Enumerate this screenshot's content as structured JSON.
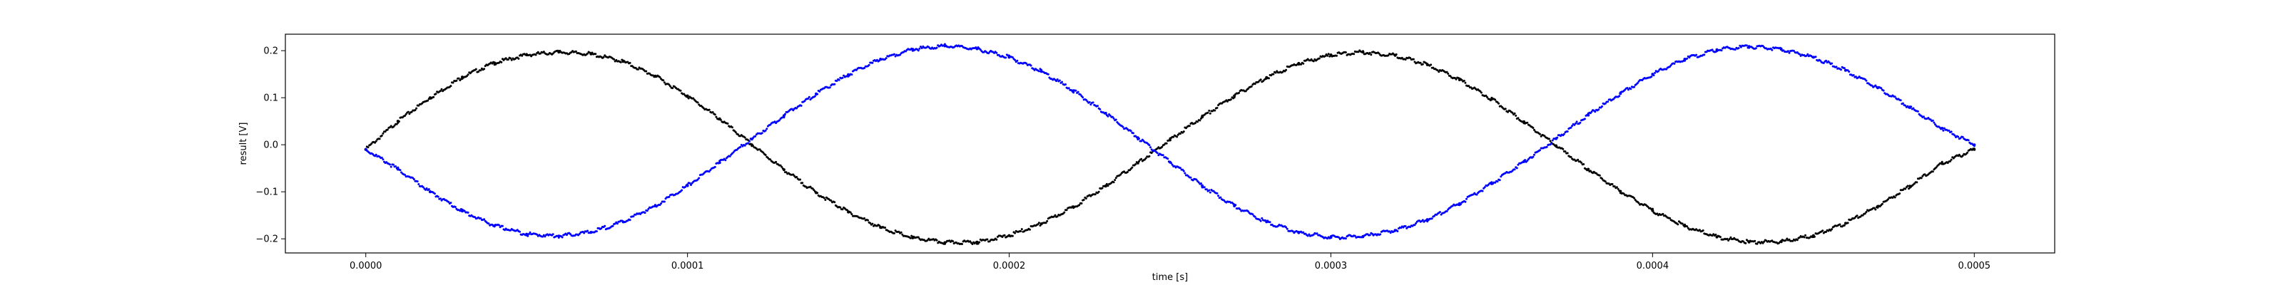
{
  "chart_data": {
    "type": "scatter",
    "title": "",
    "xlabel": "time [s]",
    "ylabel": "result [V]",
    "xlim": [
      -2.5e-05,
      0.000525
    ],
    "ylim": [
      -0.23,
      0.235
    ],
    "x_ticks": [
      0.0,
      0.0001,
      0.0002,
      0.0003,
      0.0004,
      0.0005
    ],
    "x_tick_labels": [
      "0.0000",
      "0.0001",
      "0.0002",
      "0.0003",
      "0.0004",
      "0.0005"
    ],
    "y_ticks": [
      -0.2,
      -0.1,
      0.0,
      0.1,
      0.2
    ],
    "y_tick_labels": [
      "−0.2",
      "−0.1",
      "0.0",
      "0.1",
      "0.2"
    ],
    "grid": false,
    "legend": "none",
    "series": [
      {
        "color": "#000000",
        "marker": "dot",
        "x": [
          0.0,
          1e-05,
          2e-05,
          3e-05,
          4e-05,
          5e-05,
          6e-05,
          7e-05,
          8e-05,
          9e-05,
          0.0001,
          0.00011,
          0.00012,
          0.00013,
          0.00014,
          0.00015,
          0.00016,
          0.00017,
          0.00018,
          0.00019,
          0.0002,
          0.00021,
          0.00022,
          0.00023,
          0.00024,
          0.00025,
          0.00026,
          0.00027,
          0.00028,
          0.00029,
          0.0003,
          0.00031,
          0.00032,
          0.00033,
          0.00034,
          0.00035,
          0.00036,
          0.00037,
          0.00038,
          0.00039,
          0.0004,
          0.00041,
          0.00042,
          0.00043,
          0.00044,
          0.00045,
          0.00046,
          0.00047,
          0.00048,
          0.00049,
          0.0005
        ],
        "y": [
          -0.01,
          0.05,
          0.1,
          0.144,
          0.174,
          0.191,
          0.197,
          0.193,
          0.177,
          0.146,
          0.104,
          0.055,
          0.0,
          -0.053,
          -0.102,
          -0.143,
          -0.176,
          -0.198,
          -0.208,
          -0.207,
          -0.193,
          -0.168,
          -0.132,
          -0.088,
          -0.039,
          0.01,
          0.059,
          0.104,
          0.143,
          0.173,
          0.191,
          0.197,
          0.19,
          0.17,
          0.138,
          0.097,
          0.049,
          -0.002,
          -0.052,
          -0.099,
          -0.14,
          -0.173,
          -0.196,
          -0.207,
          -0.206,
          -0.193,
          -0.167,
          -0.131,
          -0.088,
          -0.04,
          -0.01
        ]
      },
      {
        "color": "#0000ff",
        "marker": "dot",
        "x": [
          0.0,
          1e-05,
          2e-05,
          3e-05,
          4e-05,
          5e-05,
          6e-05,
          7e-05,
          8e-05,
          9e-05,
          0.0001,
          0.00011,
          0.00012,
          0.00013,
          0.00014,
          0.00015,
          0.00016,
          0.00017,
          0.00018,
          0.00019,
          0.0002,
          0.00021,
          0.00022,
          0.00023,
          0.00024,
          0.00025,
          0.00026,
          0.00027,
          0.00028,
          0.00029,
          0.0003,
          0.00031,
          0.00032,
          0.00033,
          0.00034,
          0.00035,
          0.00036,
          0.00037,
          0.00038,
          0.00039,
          0.0004,
          0.00041,
          0.00042,
          0.00043,
          0.00044,
          0.00045,
          0.00046,
          0.00047,
          0.00048,
          0.00049,
          0.0005
        ],
        "y": [
          -0.01,
          -0.052,
          -0.1,
          -0.141,
          -0.172,
          -0.19,
          -0.194,
          -0.186,
          -0.164,
          -0.13,
          -0.087,
          -0.038,
          0.012,
          0.062,
          0.108,
          0.149,
          0.182,
          0.203,
          0.21,
          0.204,
          0.186,
          0.156,
          0.115,
          0.067,
          0.015,
          -0.037,
          -0.087,
          -0.13,
          -0.164,
          -0.187,
          -0.197,
          -0.195,
          -0.182,
          -0.159,
          -0.125,
          -0.083,
          -0.036,
          0.013,
          0.063,
          0.109,
          0.15,
          0.182,
          0.202,
          0.209,
          0.203,
          0.186,
          0.158,
          0.121,
          0.079,
          0.035,
          0.0
        ]
      }
    ]
  }
}
